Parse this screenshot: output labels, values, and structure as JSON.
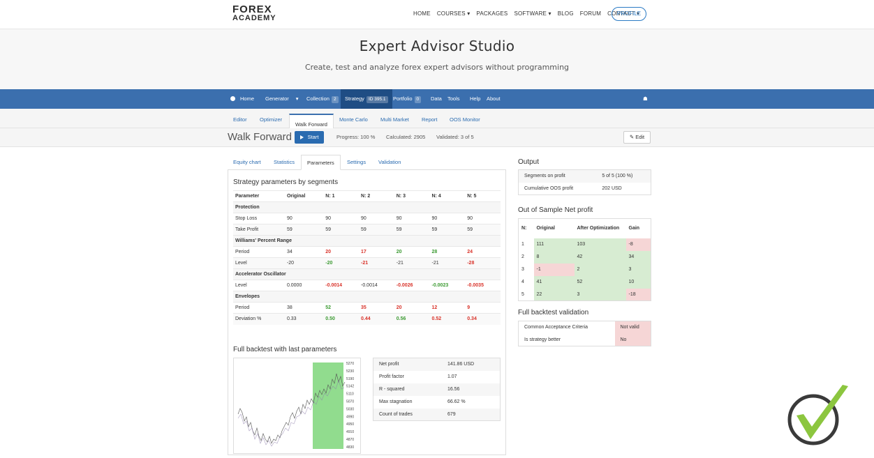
{
  "site": {
    "logo_line1": "FOREX",
    "logo_line2": "ACADEMY",
    "nav": [
      "HOME",
      "COURSES ▾",
      "PACKAGES",
      "SOFTWARE ▾",
      "BLOG",
      "FORUM",
      "CONTACT ▾"
    ],
    "profile": "PROFILE"
  },
  "hero": {
    "title": "Expert Advisor Studio",
    "subtitle": "Create, test and analyze forex expert advisors without programming"
  },
  "app_nav": {
    "home": "Home",
    "generator": "Generator",
    "collection": "Collection",
    "collection_count": "2",
    "strategy": "Strategy",
    "strategy_id": "ID 395.1",
    "portfolio": "Portfolio",
    "portfolio_count": "0",
    "data": "Data",
    "tools": "Tools",
    "help": "Help",
    "about": "About"
  },
  "subtabs": [
    "Editor",
    "Optimizer",
    "Walk Forward",
    "Monte Carlo",
    "Multi Market",
    "Report",
    "OOS Monitor"
  ],
  "titlebar": {
    "title": "Walk Forward",
    "start": "Start",
    "progress": "Progress: 100 %",
    "calculated": "Calculated: 2905",
    "validated": "Validated: 3 of 5",
    "edit": "Edit"
  },
  "panel_tabs": [
    "Equity chart",
    "Statistics",
    "Parameters",
    "Settings",
    "Validation"
  ],
  "params": {
    "title": "Strategy parameters by segments",
    "headers": [
      "Parameter",
      "Original",
      "N: 1",
      "N: 2",
      "N: 3",
      "N: 4",
      "N: 5"
    ],
    "rows": [
      {
        "group": "Protection"
      },
      {
        "cells": [
          "Stop Loss",
          "90",
          "90",
          "90",
          "90",
          "90",
          "90"
        ],
        "cls": [
          "",
          "",
          "",
          "",
          "",
          "",
          ""
        ]
      },
      {
        "cells": [
          "Take Profit",
          "59",
          "59",
          "59",
          "59",
          "59",
          "59"
        ],
        "cls": [
          "",
          "",
          "",
          "",
          "",
          "",
          ""
        ]
      },
      {
        "group": "Williams' Percent Range"
      },
      {
        "cells": [
          "Period",
          "34",
          "20",
          "17",
          "20",
          "28",
          "24"
        ],
        "cls": [
          "",
          "",
          "red",
          "red",
          "green",
          "green",
          "red"
        ]
      },
      {
        "cells": [
          "Level",
          "-20",
          "-20",
          "-21",
          "-21",
          "-21",
          "-28"
        ],
        "cls": [
          "",
          "",
          "green",
          "red",
          "",
          "",
          "red"
        ]
      },
      {
        "group": "Accelerator Oscillator"
      },
      {
        "cells": [
          "Level",
          "0.0000",
          "-0.0014",
          "-0.0014",
          "-0.0026",
          "-0.0023",
          "-0.0035"
        ],
        "cls": [
          "",
          "",
          "red",
          "",
          "red",
          "green",
          "red"
        ]
      },
      {
        "group": "Envelopes"
      },
      {
        "cells": [
          "Period",
          "38",
          "52",
          "35",
          "20",
          "12",
          "9"
        ],
        "cls": [
          "",
          "",
          "green",
          "red",
          "red",
          "red",
          "red"
        ]
      },
      {
        "cells": [
          "Deviation %",
          "0.33",
          "0.50",
          "0.44",
          "0.56",
          "0.52",
          "0.34"
        ],
        "cls": [
          "",
          "",
          "green",
          "red",
          "green",
          "red",
          "red"
        ]
      }
    ]
  },
  "backtest": {
    "title": "Full backtest with last parameters",
    "y_ticks": [
      "5270",
      "5230",
      "5190",
      "5142",
      "5110",
      "5070",
      "5030",
      "4990",
      "4950",
      "4910",
      "4870",
      "4830"
    ],
    "stats": [
      [
        "Net profit",
        "141.86 USD"
      ],
      [
        "Profit factor",
        "1.07"
      ],
      [
        "R - squared",
        "16.56"
      ],
      [
        "Max stagnation",
        "66.62 %"
      ],
      [
        "Count of trades",
        "679"
      ]
    ]
  },
  "output": {
    "title": "Output",
    "rows": [
      [
        "Segments on profit",
        "5 of 5 (100 %)"
      ],
      [
        "Cumulative OOS profit",
        "202 USD"
      ]
    ]
  },
  "oos": {
    "title": "Out of Sample Net profit",
    "headers": [
      "N:",
      "Original",
      "After Optimization",
      "Gain"
    ],
    "rows": [
      {
        "n": "1",
        "orig": "111",
        "after": "103",
        "gain": "-8",
        "g": "r"
      },
      {
        "n": "2",
        "orig": "8",
        "after": "42",
        "gain": "34",
        "g": "g"
      },
      {
        "n": "3",
        "orig": "-1",
        "after": "2",
        "gain": "3",
        "g": "g"
      },
      {
        "n": "4",
        "orig": "41",
        "after": "52",
        "gain": "10",
        "g": "g"
      },
      {
        "n": "5",
        "orig": "22",
        "after": "3",
        "gain": "-18",
        "g": "r"
      }
    ]
  },
  "validation": {
    "title": "Full backtest validation",
    "rows": [
      [
        "Common Acceptance Criteria",
        "Not valid"
      ],
      [
        "Is strategy better",
        "No"
      ]
    ]
  },
  "colors": {
    "nav": "#3b6fae",
    "nav_active": "#1f4d84",
    "link": "#2a6bb0",
    "red": "#d9332a",
    "green": "#3c9a32",
    "check": "#8cc63f"
  }
}
